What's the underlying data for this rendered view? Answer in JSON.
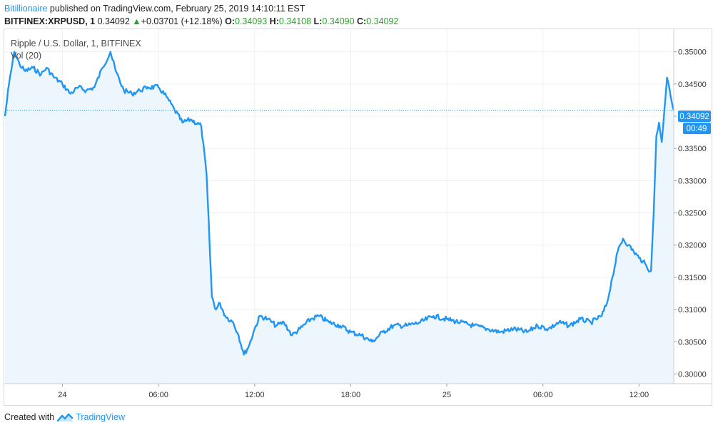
{
  "header": {
    "author": "Bitillionaire",
    "published_text": " published on TradingView.com, February 25, 2019 14:10:11 EST",
    "symbol": "BITFINEX:XRPUSD, 1",
    "last": "0.34092",
    "change": "+0.03701 (+12.18%)",
    "o_label": "O:",
    "o_value": "0.34093",
    "h_label": "H:",
    "h_value": "0.34108",
    "l_label": "L:",
    "l_value": "0.34090",
    "c_label": "C:",
    "c_value": "0.34092"
  },
  "legend": {
    "pair": "Ripple / U.S. Dollar, 1, BITFINEX",
    "volume": "Vol (20)"
  },
  "footer": {
    "created_with": "Created with",
    "brand": "TradingView"
  },
  "colors": {
    "line": "#2196f3",
    "area": "#eef6fd",
    "last_price_tag": "#2196f3",
    "volume_up": "#89c8c2",
    "volume_down": "#f3a7ad",
    "grid": "#edf0f3"
  },
  "chart_data": {
    "type": "line",
    "title": "Ripple / U.S. Dollar, 1, BITFINEX",
    "ylim": [
      0.2985,
      0.3535
    ],
    "y_ticks": [
      "0.35000",
      "0.34500",
      "0.34000",
      "0.33500",
      "0.33000",
      "0.32500",
      "0.32000",
      "0.31500",
      "0.31000",
      "0.30500",
      "0.30000"
    ],
    "x_range": [
      "Feb 23 20:25",
      "Feb 25 14:10"
    ],
    "x_ticks": [
      {
        "label": "24",
        "time": "Feb 24 00:00"
      },
      {
        "label": "06:00",
        "time": "Feb 24 06:00"
      },
      {
        "label": "12:00",
        "time": "Feb 24 12:00"
      },
      {
        "label": "18:00",
        "time": "Feb 24 18:00"
      },
      {
        "label": "25",
        "time": "Feb 25 00:00"
      },
      {
        "label": "06:00",
        "time": "Feb 25 06:00"
      },
      {
        "label": "12:00",
        "time": "Feb 25 12:00"
      }
    ],
    "last_price": "0.34092",
    "countdown": "00:49",
    "grid": true,
    "series": [
      {
        "x": [
          "Feb 23 20:25",
          "Feb 23 20:40",
          "Feb 23 21:00",
          "Feb 23 21:20",
          "Feb 23 21:40",
          "Feb 23 22:10",
          "Feb 23 22:40",
          "Feb 23 23:00",
          "Feb 23 23:30",
          "Feb 24 00:00",
          "Feb 24 00:30",
          "Feb 24 01:00",
          "Feb 24 01:30",
          "Feb 24 02:00",
          "Feb 24 02:30",
          "Feb 24 03:00",
          "Feb 24 03:20",
          "Feb 24 03:50",
          "Feb 24 04:20",
          "Feb 24 04:50",
          "Feb 24 05:20",
          "Feb 24 06:00",
          "Feb 24 06:30",
          "Feb 24 07:00",
          "Feb 24 07:30",
          "Feb 24 08:00",
          "Feb 24 08:40",
          "Feb 24 09:00",
          "Feb 24 09:20",
          "Feb 24 09:35",
          "Feb 24 09:50",
          "Feb 24 10:10",
          "Feb 24 10:40",
          "Feb 24 11:00",
          "Feb 24 11:20",
          "Feb 24 11:40",
          "Feb 24 12:00",
          "Feb 24 12:20",
          "Feb 24 12:50",
          "Feb 24 13:20",
          "Feb 24 13:50",
          "Feb 24 14:20",
          "Feb 24 14:50",
          "Feb 24 15:30",
          "Feb 24 16:00",
          "Feb 24 16:40",
          "Feb 24 17:20",
          "Feb 24 18:00",
          "Feb 24 18:40",
          "Feb 24 19:20",
          "Feb 24 20:00",
          "Feb 24 20:40",
          "Feb 24 21:30",
          "Feb 24 22:20",
          "Feb 24 23:10",
          "Feb 25 00:00",
          "Feb 25 00:50",
          "Feb 25 01:40",
          "Feb 25 02:30",
          "Feb 25 03:20",
          "Feb 25 04:10",
          "Feb 25 05:00",
          "Feb 25 05:40",
          "Feb 25 06:20",
          "Feb 25 07:00",
          "Feb 25 07:40",
          "Feb 25 08:20",
          "Feb 25 09:00",
          "Feb 25 09:40",
          "Feb 25 10:00",
          "Feb 25 10:20",
          "Feb 25 10:40",
          "Feb 25 11:00",
          "Feb 25 11:20",
          "Feb 25 11:40",
          "Feb 25 12:00",
          "Feb 25 12:15",
          "Feb 25 12:30",
          "Feb 25 12:45",
          "Feb 25 12:55",
          "Feb 25 13:05",
          "Feb 25 13:15",
          "Feb 25 13:25",
          "Feb 25 13:35",
          "Feb 25 13:45",
          "Feb 25 13:55",
          "Feb 25 14:10"
        ],
        "values": [
          0.34,
          0.345,
          0.35,
          0.348,
          0.347,
          0.3475,
          0.3465,
          0.3475,
          0.346,
          0.345,
          0.3435,
          0.3445,
          0.344,
          0.3445,
          0.3475,
          0.35,
          0.347,
          0.344,
          0.3435,
          0.344,
          0.3445,
          0.3445,
          0.343,
          0.341,
          0.339,
          0.3395,
          0.3385,
          0.331,
          0.312,
          0.31,
          0.311,
          0.309,
          0.308,
          0.306,
          0.303,
          0.3045,
          0.307,
          0.309,
          0.3085,
          0.3075,
          0.308,
          0.306,
          0.307,
          0.3085,
          0.309,
          0.308,
          0.3075,
          0.3065,
          0.306,
          0.305,
          0.3065,
          0.3075,
          0.3075,
          0.308,
          0.309,
          0.3085,
          0.308,
          0.3075,
          0.307,
          0.3065,
          0.307,
          0.3065,
          0.3075,
          0.307,
          0.308,
          0.3075,
          0.3085,
          0.308,
          0.309,
          0.311,
          0.315,
          0.319,
          0.321,
          0.32,
          0.319,
          0.318,
          0.3175,
          0.3165,
          0.316,
          0.325,
          0.337,
          0.339,
          0.336,
          0.341,
          0.346,
          0.344,
          0.3409
        ]
      }
    ]
  }
}
